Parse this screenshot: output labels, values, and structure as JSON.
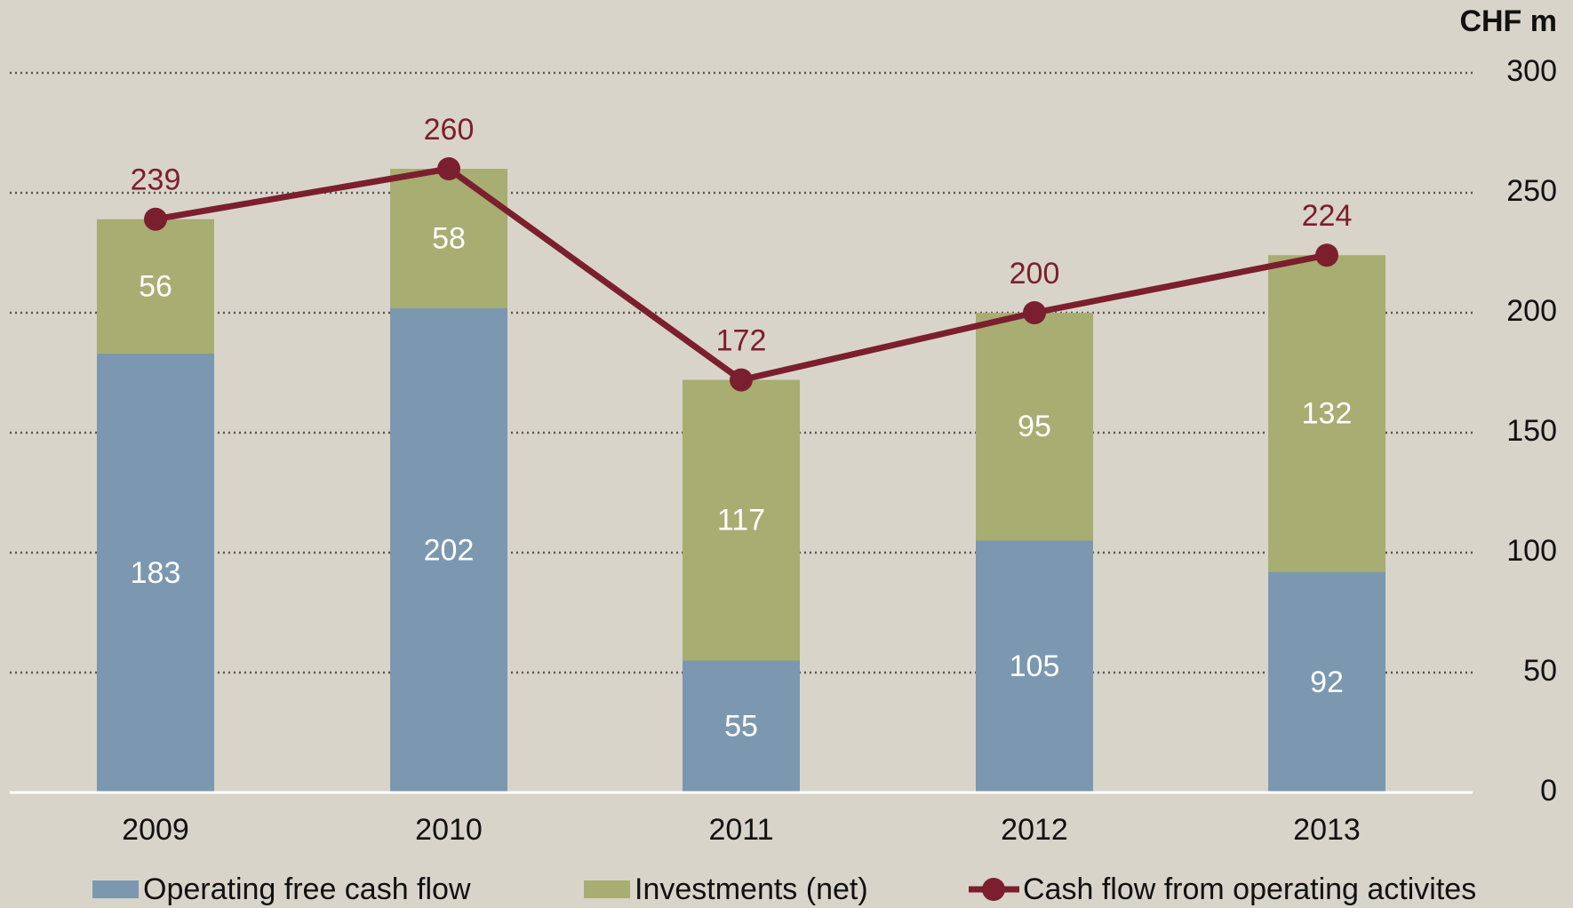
{
  "chart_data": {
    "type": "bar_line",
    "y_axis_label": "CHF m",
    "categories": [
      "2009",
      "2010",
      "2011",
      "2012",
      "2013"
    ],
    "series": [
      {
        "name": "Operating free cash flow",
        "color": "#7b98b0",
        "type": "bar",
        "values": [
          183,
          202,
          55,
          105,
          92
        ]
      },
      {
        "name": "Investments (net)",
        "color": "#a8ad72",
        "type": "bar",
        "values": [
          56,
          58,
          117,
          95,
          132
        ]
      },
      {
        "name": "Cash flow from operating activites",
        "color": "#7b1f2e",
        "type": "line",
        "values": [
          239,
          260,
          172,
          200,
          224
        ]
      }
    ],
    "stacked": true,
    "ylim": [
      0,
      300
    ],
    "yticks": [
      0,
      50,
      100,
      150,
      200,
      250,
      300
    ],
    "grid": true
  }
}
